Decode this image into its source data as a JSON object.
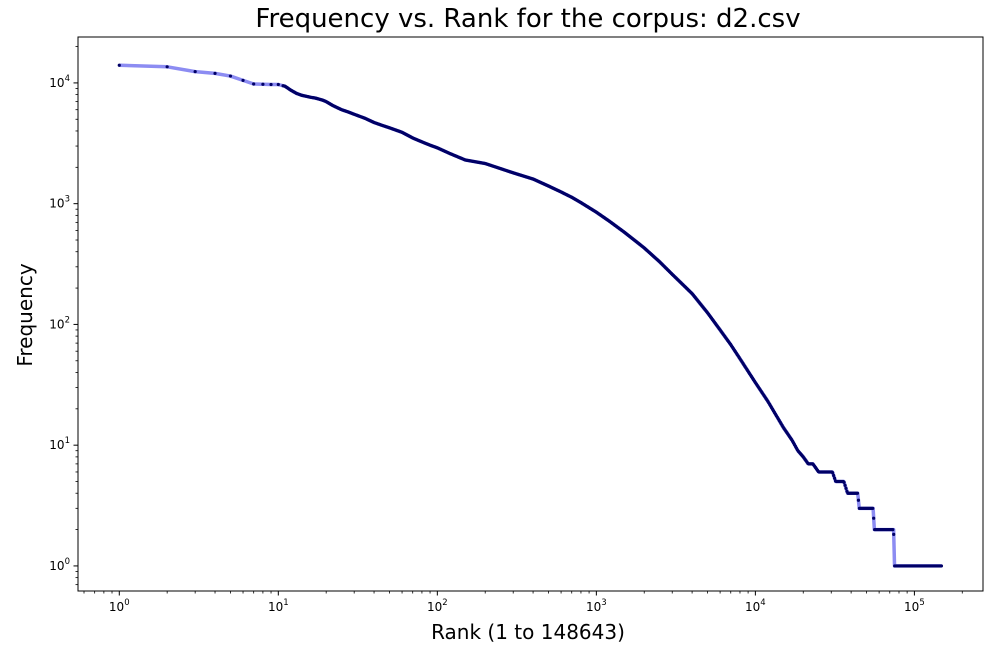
{
  "chart_data": {
    "type": "line",
    "title": "Frequency vs. Rank for the corpus: d2.csv",
    "xlabel": "Rank (1 to 148643)",
    "ylabel": "Frequency",
    "xscale": "log",
    "yscale": "log",
    "xlim": [
      0.55,
      270000
    ],
    "ylim": [
      0.62,
      24000
    ],
    "x_ticks": [
      {
        "base": "10",
        "exp": "0",
        "value": 1
      },
      {
        "base": "10",
        "exp": "1",
        "value": 10
      },
      {
        "base": "10",
        "exp": "2",
        "value": 100
      },
      {
        "base": "10",
        "exp": "3",
        "value": 1000
      },
      {
        "base": "10",
        "exp": "4",
        "value": 10000
      },
      {
        "base": "10",
        "exp": "5",
        "value": 100000
      }
    ],
    "y_ticks": [
      {
        "base": "10",
        "exp": "0",
        "value": 1
      },
      {
        "base": "10",
        "exp": "1",
        "value": 10
      },
      {
        "base": "10",
        "exp": "2",
        "value": 100
      },
      {
        "base": "10",
        "exp": "3",
        "value": 1000
      },
      {
        "base": "10",
        "exp": "4",
        "value": 10000
      }
    ],
    "grid": false,
    "legend": "none",
    "line_color": "#8c8cf2",
    "marker_color": "#000066",
    "series": [
      {
        "x": [
          1,
          2,
          3,
          4,
          5,
          6,
          7,
          8,
          9,
          10,
          11,
          12,
          13,
          14,
          15,
          16,
          17,
          18,
          19,
          20,
          22,
          25,
          28,
          30,
          35,
          40,
          45,
          50,
          60,
          70,
          80,
          90,
          100,
          120,
          150,
          200,
          250,
          300,
          400,
          500,
          600,
          700,
          800,
          1000,
          1200,
          1500,
          2000,
          2500,
          3000,
          4000,
          5000,
          6000,
          7000,
          8000,
          10000,
          12000,
          15000,
          17000,
          18500,
          20000,
          21500,
          23000,
          25000,
          27000,
          29000,
          30500,
          32000,
          33500,
          36000,
          38000,
          41000,
          44000,
          45000,
          50000,
          55000,
          56000,
          65000,
          74000,
          75000,
          100000,
          148643
        ],
        "y": [
          14000,
          13600,
          12400,
          12000,
          11400,
          10500,
          9800,
          9750,
          9700,
          9700,
          9400,
          8700,
          8200,
          7900,
          7750,
          7600,
          7500,
          7350,
          7200,
          7000,
          6500,
          6000,
          5700,
          5500,
          5100,
          4700,
          4450,
          4250,
          3900,
          3500,
          3250,
          3050,
          2900,
          2600,
          2300,
          2150,
          1950,
          1800,
          1600,
          1400,
          1250,
          1130,
          1020,
          850,
          720,
          580,
          430,
          330,
          260,
          180,
          125,
          90,
          68,
          52,
          33,
          23,
          14,
          11,
          9,
          8,
          7,
          7,
          6,
          6,
          6,
          6,
          5,
          5,
          5,
          4,
          4,
          4,
          3,
          3,
          3,
          2,
          2,
          2,
          1,
          1,
          1
        ]
      }
    ]
  }
}
